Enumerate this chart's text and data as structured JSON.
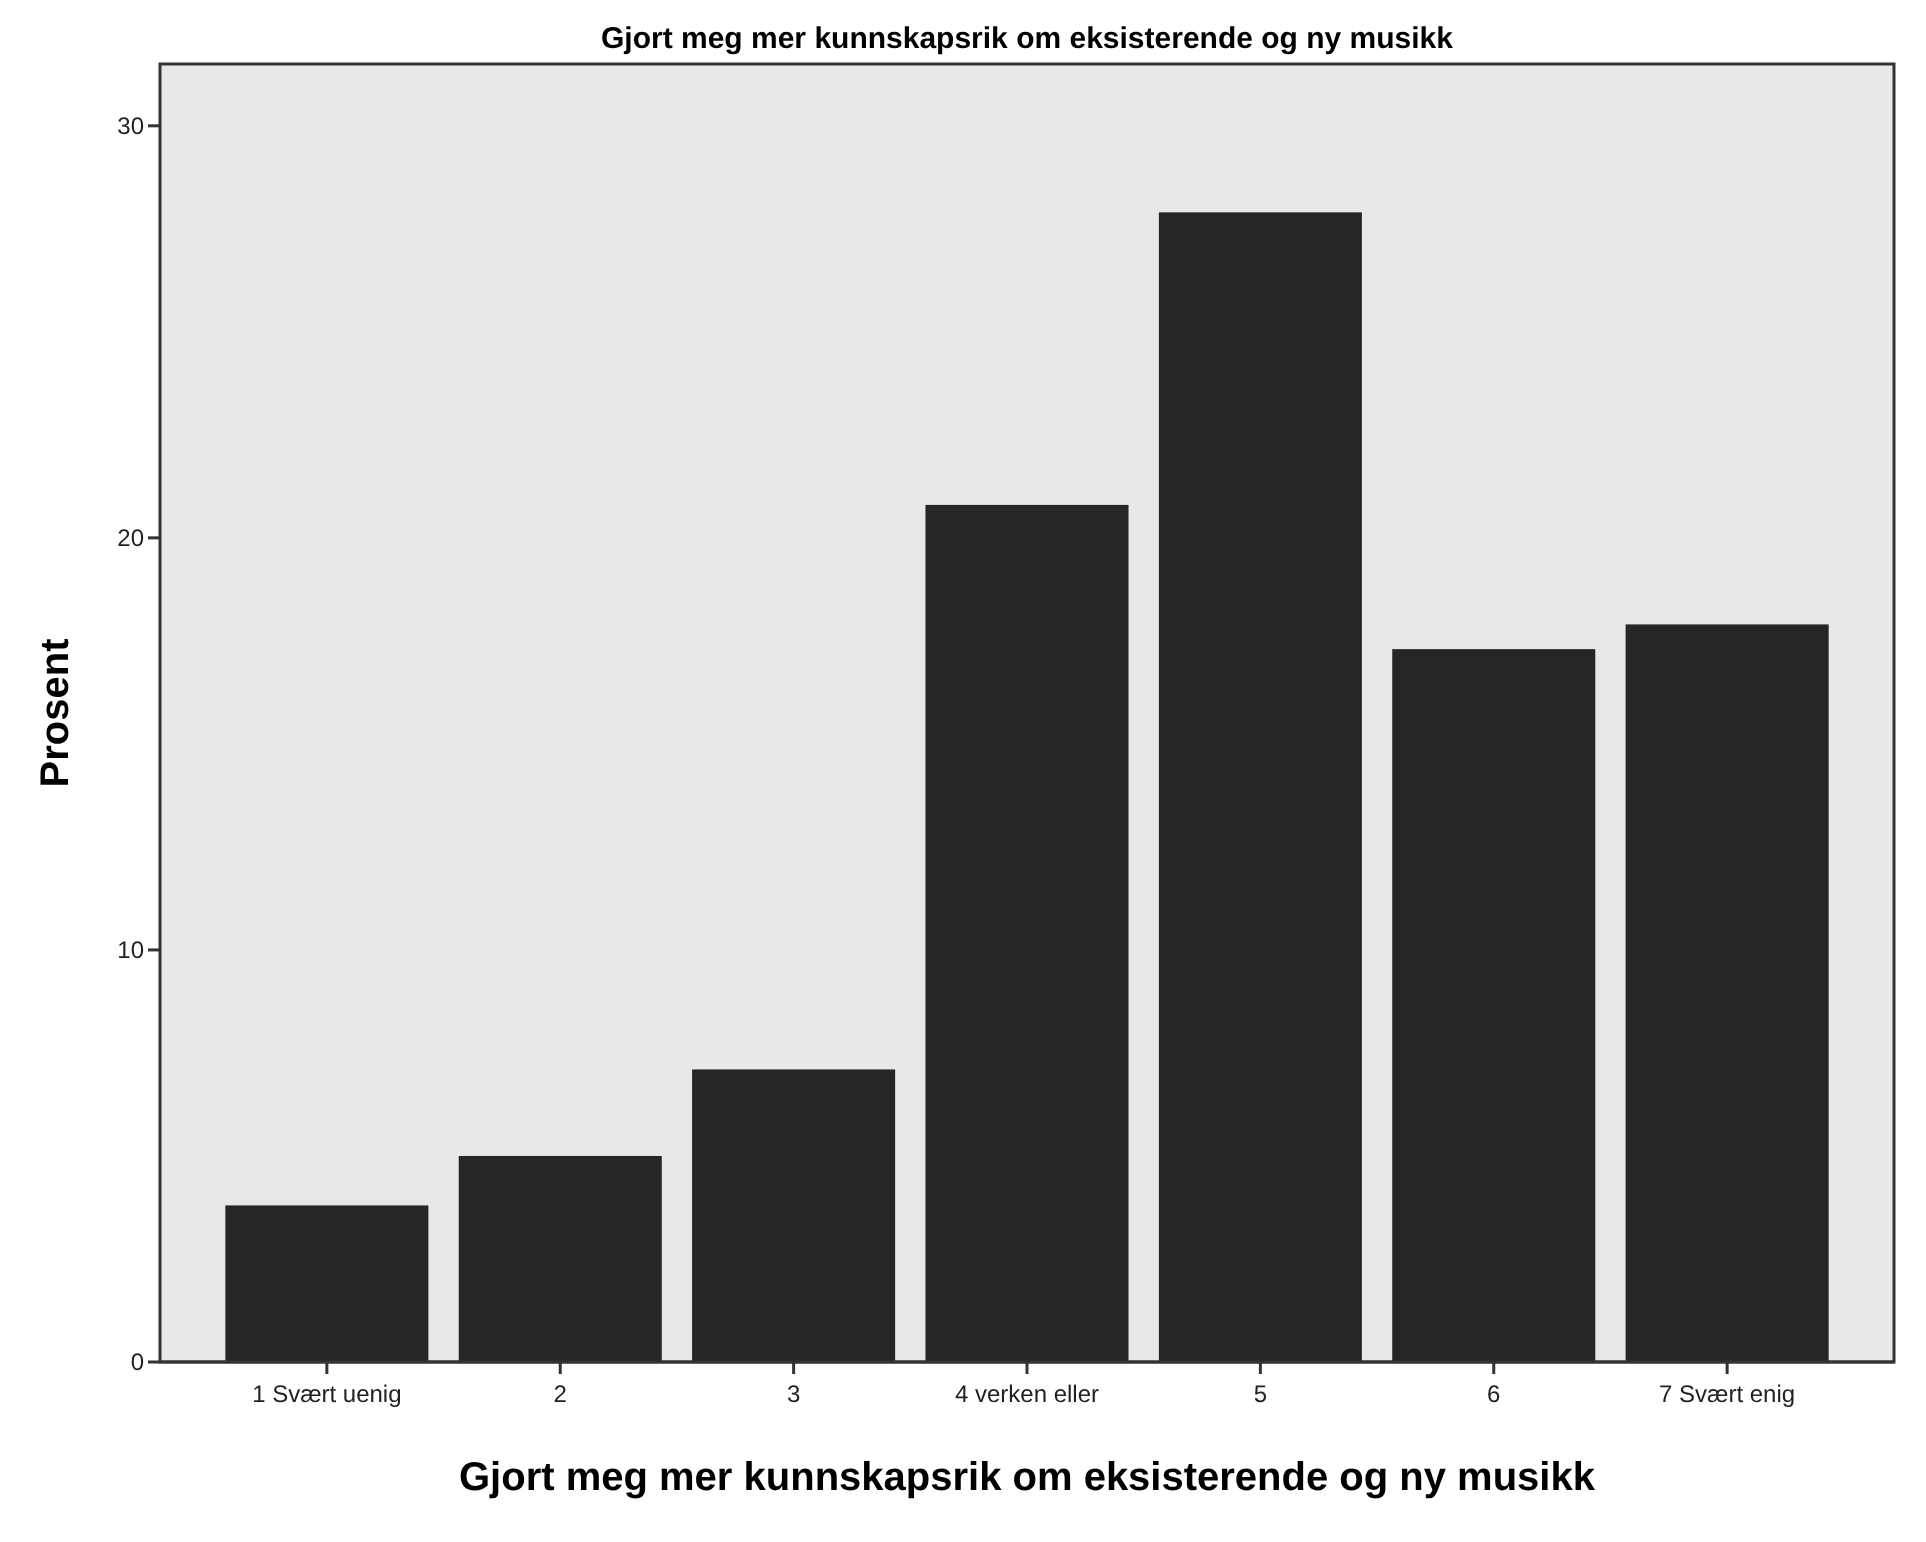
{
  "chart_data": {
    "type": "bar",
    "title": "Gjort meg mer kunnskapsrik om eksisterende og ny musikk",
    "xlabel": "Gjort meg mer kunnskapsrik om eksisterende og ny musikk",
    "ylabel": "Prosent",
    "categories": [
      "1 Svært uenig",
      "2",
      "3",
      "4  verken eller",
      "5",
      "6",
      "7 Svært enig"
    ],
    "values": [
      3.8,
      5.0,
      7.1,
      20.8,
      27.9,
      17.3,
      17.9
    ],
    "color": "#262626",
    "ylim": [
      0,
      31.5
    ],
    "yticks": [
      0,
      10,
      20,
      30
    ],
    "grid": false
  }
}
